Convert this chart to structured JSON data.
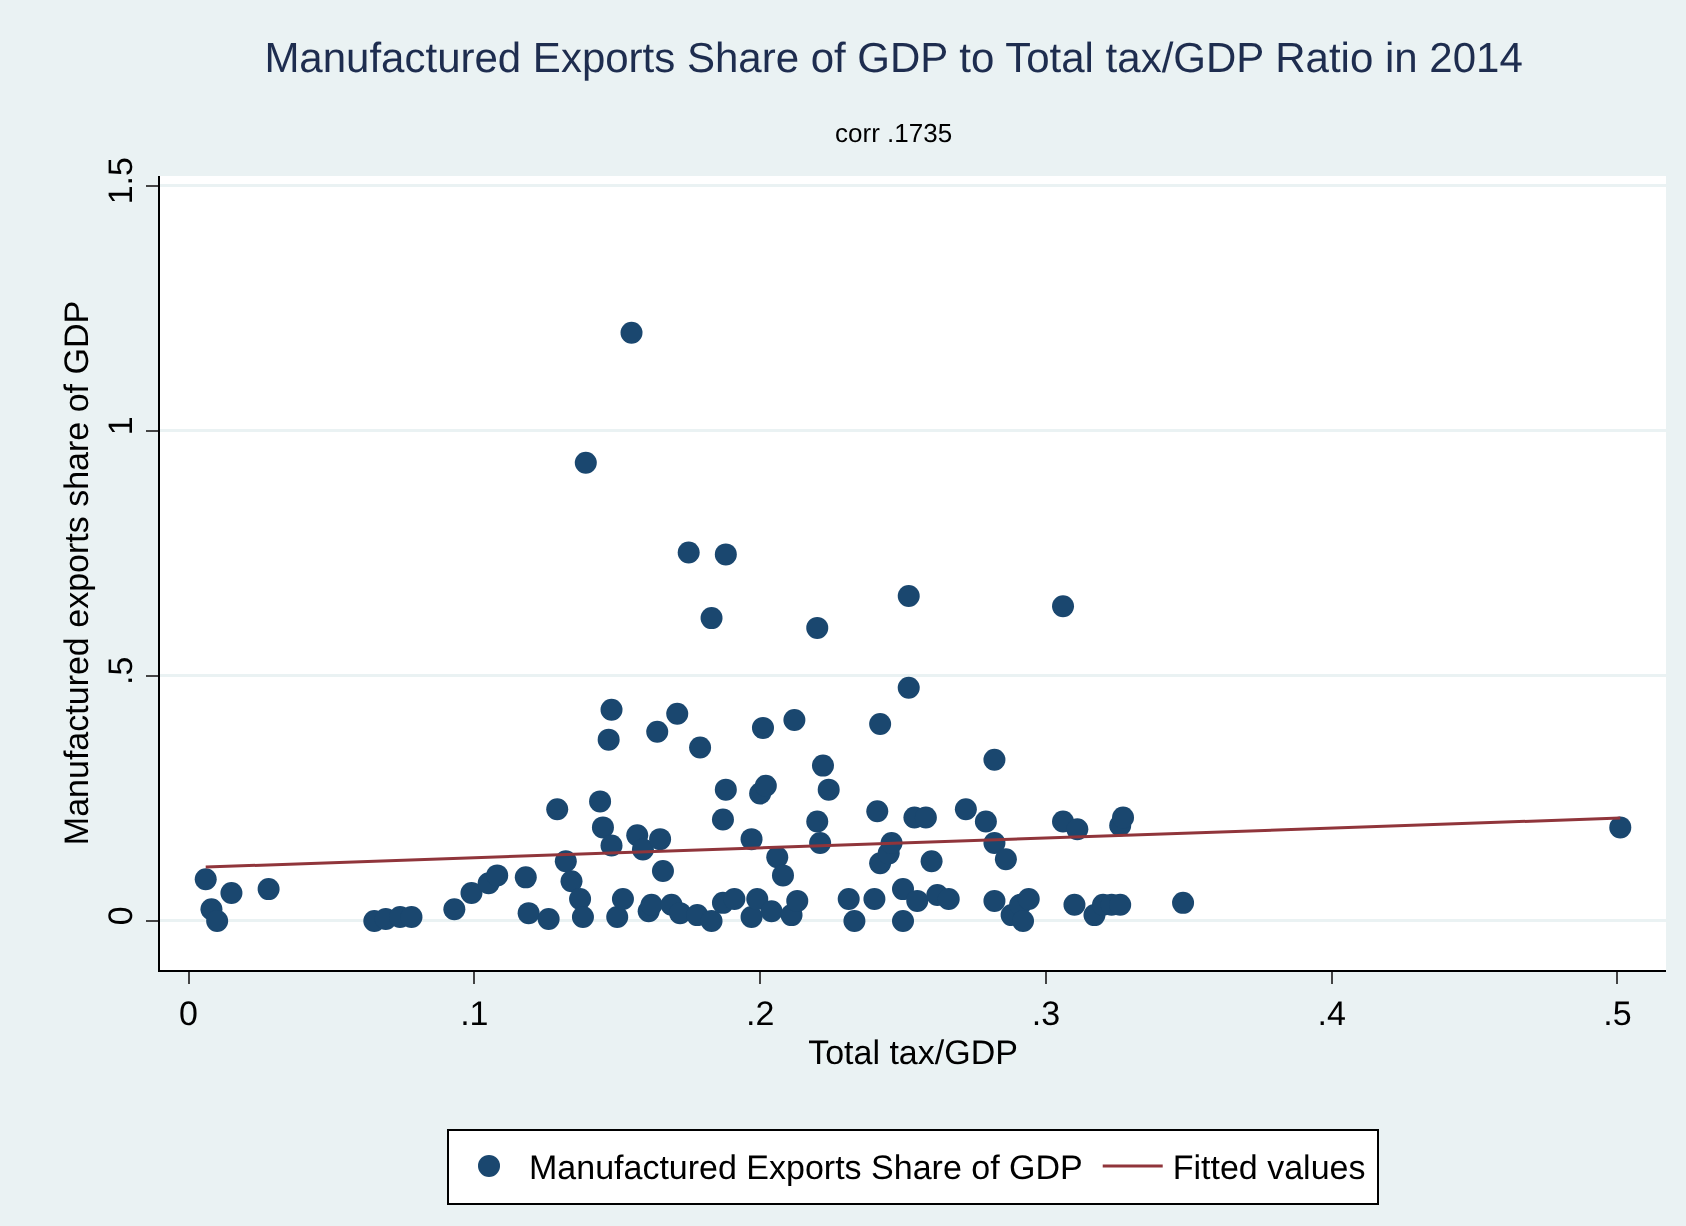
{
  "chart_data": {
    "type": "scatter",
    "title": "Manufactured Exports Share of GDP to Total tax/GDP Ratio in 2014",
    "subtitle": "corr .1735",
    "xlabel": "Total tax/GDP",
    "ylabel": "Manufactured exports share of GDP",
    "xlim": [
      -0.01,
      0.517
    ],
    "ylim": [
      -0.1,
      1.52
    ],
    "xticks": [
      0,
      {
        "value": 0.1,
        "label": ".1"
      },
      {
        "value": 0.2,
        "label": ".2"
      },
      {
        "value": 0.3,
        "label": ".3"
      },
      {
        "value": 0.4,
        "label": ".4"
      },
      {
        "value": 0.5,
        "label": ".5"
      }
    ],
    "yticks": [
      0,
      {
        "value": 0.5,
        "label": ".5"
      },
      1,
      1.5
    ],
    "grid": "y",
    "legend": "bottom",
    "marker": "circle",
    "series": [
      {
        "name": "Manufactured Exports Share of GDP",
        "color": "#1a476f",
        "x": [
          0.006,
          0.008,
          0.01,
          0.015,
          0.028,
          0.065,
          0.069,
          0.074,
          0.078,
          0.093,
          0.099,
          0.105,
          0.108,
          0.118,
          0.119,
          0.126,
          0.129,
          0.132,
          0.134,
          0.137,
          0.139,
          0.138,
          0.144,
          0.145,
          0.148,
          0.148,
          0.147,
          0.15,
          0.152,
          0.155,
          0.157,
          0.159,
          0.161,
          0.162,
          0.164,
          0.165,
          0.166,
          0.169,
          0.171,
          0.172,
          0.175,
          0.179,
          0.178,
          0.183,
          0.183,
          0.187,
          0.188,
          0.188,
          0.187,
          0.191,
          0.197,
          0.197,
          0.199,
          0.2,
          0.201,
          0.202,
          0.204,
          0.206,
          0.208,
          0.211,
          0.212,
          0.213,
          0.22,
          0.22,
          0.221,
          0.222,
          0.224,
          0.231,
          0.233,
          0.24,
          0.241,
          0.242,
          0.242,
          0.245,
          0.246,
          0.25,
          0.25,
          0.252,
          0.252,
          0.254,
          0.255,
          0.258,
          0.26,
          0.262,
          0.266,
          0.272,
          0.279,
          0.282,
          0.282,
          0.282,
          0.286,
          0.288,
          0.291,
          0.292,
          0.294,
          0.306,
          0.306,
          0.311,
          0.31,
          0.317,
          0.32,
          0.323,
          0.326,
          0.327,
          0.326,
          0.348,
          0.501
        ],
        "values": [
          0.085,
          0.024,
          0.0,
          0.057,
          0.065,
          0.0,
          0.004,
          0.008,
          0.008,
          0.024,
          0.057,
          0.077,
          0.093,
          0.089,
          0.016,
          0.004,
          0.228,
          0.122,
          0.081,
          0.045,
          0.935,
          0.008,
          0.244,
          0.191,
          0.154,
          0.431,
          0.37,
          0.008,
          0.045,
          1.2,
          0.175,
          0.146,
          0.02,
          0.033,
          0.386,
          0.167,
          0.102,
          0.033,
          0.423,
          0.016,
          0.752,
          0.354,
          0.012,
          0.618,
          0.0,
          0.207,
          0.268,
          0.748,
          0.037,
          0.045,
          0.008,
          0.167,
          0.045,
          0.26,
          0.394,
          0.276,
          0.02,
          0.13,
          0.093,
          0.012,
          0.41,
          0.041,
          0.598,
          0.203,
          0.159,
          0.317,
          0.268,
          0.045,
          0.0,
          0.045,
          0.224,
          0.402,
          0.118,
          0.138,
          0.159,
          0.0,
          0.065,
          0.476,
          0.663,
          0.211,
          0.041,
          0.211,
          0.122,
          0.053,
          0.045,
          0.228,
          0.203,
          0.329,
          0.041,
          0.159,
          0.126,
          0.012,
          0.033,
          0.0,
          0.045,
          0.203,
          0.642,
          0.187,
          0.033,
          0.012,
          0.033,
          0.033,
          0.195,
          0.211,
          0.033,
          0.037,
          0.191
        ]
      },
      {
        "name": "Fitted values",
        "type": "line",
        "color": "#90353b",
        "marker": "none",
        "x": [
          0.006,
          0.501
        ],
        "values": [
          0.11,
          0.21
        ]
      }
    ]
  }
}
